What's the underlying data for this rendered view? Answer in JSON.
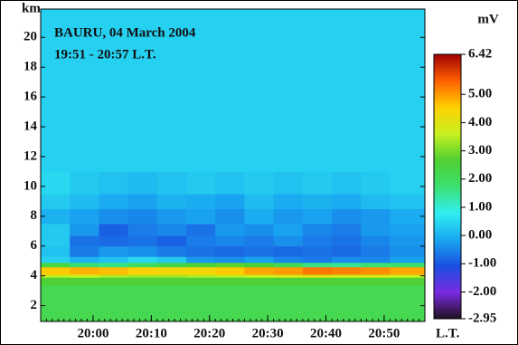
{
  "chart_data": {
    "type": "heatmap",
    "title": "BAURU,  04 March 2004",
    "subtitle": "19:51 - 20:57 L.T.",
    "x_label": "L.T.",
    "y_label": "km",
    "colorbar_label": "mV",
    "xlim": [
      "19:51",
      "20:57"
    ],
    "xticks": [
      "20:00",
      "20:10",
      "20:20",
      "20:30",
      "20:40",
      "20:50"
    ],
    "ylim": [
      0.94,
      21.9
    ],
    "yticks": [
      2,
      4,
      6,
      8,
      10,
      12,
      14,
      16,
      18,
      20
    ],
    "x": [
      "19:51",
      "19:56",
      "20:01",
      "20:06",
      "20:11",
      "20:16",
      "20:21",
      "20:26",
      "20:31",
      "20:36",
      "20:41",
      "20:46",
      "20:51"
    ],
    "y": [
      0.94,
      3.4,
      3.9,
      4.1,
      4.6,
      4.9,
      5.3,
      6,
      6.7,
      7.5,
      8.5,
      9.5,
      11
    ],
    "values": [
      [
        2.2,
        2.2,
        2.2,
        2.2,
        2.2,
        2.2,
        2.2,
        2.2,
        2.2,
        2.2,
        2.2,
        2.2,
        2.2
      ],
      [
        2.6,
        2.6,
        2.6,
        2.6,
        2.6,
        2.6,
        2.6,
        2.6,
        2.6,
        2.6,
        2.6,
        2.6,
        2.6
      ],
      [
        3.5,
        3.6,
        3.4,
        3.3,
        3.3,
        3.4,
        3.5,
        3.6,
        3.8,
        3.9,
        3.7,
        3.8,
        3.6
      ],
      [
        4.6,
        4.8,
        4.7,
        4.5,
        4.4,
        4.4,
        4.6,
        4.9,
        5.0,
        5.3,
        5.2,
        5.1,
        4.9
      ],
      [
        2.4,
        1.8,
        1.6,
        2.0,
        2.3,
        2.6,
        2.8,
        2.6,
        2.2,
        1.6,
        1.5,
        1.7,
        1.8
      ],
      [
        0.4,
        0.0,
        0.2,
        0.5,
        0.3,
        -0.3,
        -0.4,
        -0.2,
        -0.5,
        -0.6,
        -0.4,
        -0.5,
        -0.2
      ],
      [
        0.2,
        -0.6,
        -0.3,
        -0.4,
        -0.6,
        -0.7,
        -0.8,
        -0.7,
        -0.8,
        -0.7,
        -0.8,
        -0.6,
        -0.4
      ],
      [
        0.3,
        -0.7,
        -0.8,
        -0.7,
        -0.9,
        -0.6,
        -0.5,
        -0.6,
        -0.4,
        -0.6,
        -0.7,
        -0.5,
        -0.3
      ],
      [
        0.3,
        -0.3,
        -0.9,
        -0.6,
        -0.5,
        -0.7,
        -0.3,
        -0.4,
        -0.2,
        -0.5,
        -0.6,
        -0.3,
        -0.2
      ],
      [
        0.0,
        -0.2,
        -0.4,
        -0.5,
        -0.3,
        -0.2,
        -0.4,
        -0.1,
        -0.3,
        -0.2,
        -0.4,
        -0.3,
        -0.1
      ],
      [
        0.3,
        0.1,
        -0.1,
        -0.2,
        0.0,
        -0.1,
        -0.2,
        0.1,
        -0.1,
        0.0,
        -0.1,
        0.1,
        0.2
      ],
      [
        0.5,
        0.3,
        0.2,
        0.1,
        0.2,
        0.3,
        0.2,
        0.3,
        0.2,
        0.3,
        0.2,
        0.3,
        0.4
      ],
      [
        0.4,
        0.4,
        0.4,
        0.4,
        0.4,
        0.4,
        0.4,
        0.4,
        0.4,
        0.4,
        0.4,
        0.4,
        0.4
      ]
    ],
    "clim": [
      -2.95,
      6.42
    ],
    "cticks": [
      6.42,
      {
        "value": 5,
        "label": "5.00"
      },
      {
        "value": 4,
        "label": "4.00"
      },
      {
        "value": 3,
        "label": "3.00"
      },
      {
        "value": 2,
        "label": "2.00"
      },
      {
        "value": 1,
        "label": "1.00"
      },
      {
        "value": 0,
        "label": "0.00"
      },
      {
        "value": -1,
        "label": "-1.00"
      },
      {
        "value": -2,
        "label": "-2.00"
      },
      -2.95
    ],
    "colors": [
      "#201020",
      "#7a2be2",
      "#1a4fe0",
      "#19a8f0",
      "#30eef0",
      "#3ce070",
      "#50d030",
      "#c8f020",
      "#ffd000",
      "#ff6000",
      "#a00000"
    ]
  }
}
